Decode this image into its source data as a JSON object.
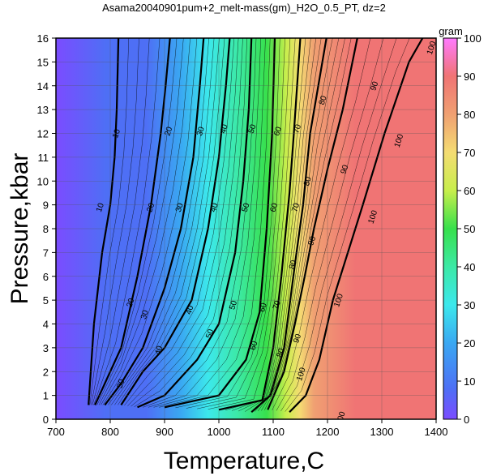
{
  "chart_data": {
    "type": "heatmap",
    "title": "Asama20040901pum+2_melt-mass(gm)_H2O_0.5_PT, dz=2",
    "xlabel": "Temperature,C",
    "ylabel": "Pressure,kbar",
    "xlim": [
      700,
      1400
    ],
    "ylim": [
      0,
      16
    ],
    "x_ticks": [
      700,
      800,
      900,
      1000,
      1100,
      1200,
      1300,
      1400
    ],
    "y_ticks": [
      0,
      1,
      2,
      3,
      4,
      5,
      6,
      7,
      8,
      9,
      10,
      11,
      12,
      13,
      14,
      15,
      16
    ],
    "grid": true,
    "colorbar": {
      "label": "gram",
      "range": [
        0,
        100
      ],
      "ticks": [
        0,
        10,
        20,
        30,
        40,
        50,
        60,
        70,
        80,
        90,
        100
      ],
      "placement": "right"
    },
    "contour_step": 2,
    "major_contour_step": 10,
    "contours": [
      {
        "level": 10,
        "points": [
          [
            760,
            0.6
          ],
          [
            770,
            4
          ],
          [
            785,
            7
          ],
          [
            800,
            9
          ],
          [
            808,
            11
          ],
          [
            812,
            13
          ],
          [
            815,
            16
          ]
        ],
        "labels": [
          [
            780,
            8.9
          ],
          [
            810,
            12.0
          ]
        ]
      },
      {
        "level": 20,
        "points": [
          [
            772,
            0.6
          ],
          [
            820,
            3
          ],
          [
            850,
            6
          ],
          [
            875,
            9
          ],
          [
            893,
            12
          ],
          [
            902,
            14
          ],
          [
            910,
            16
          ]
        ],
        "labels": [
          [
            836,
            4.9
          ],
          [
            873,
            8.9
          ],
          [
            906,
            12.1
          ]
        ]
      },
      {
        "level": 30,
        "points": [
          [
            790,
            0.6
          ],
          [
            820,
            1.5
          ],
          [
            860,
            3
          ],
          [
            900,
            5.5
          ],
          [
            930,
            8
          ],
          [
            953,
            11
          ],
          [
            965,
            14
          ],
          [
            972,
            16
          ]
        ],
        "labels": [
          [
            818,
            1.5
          ],
          [
            862,
            4.4
          ],
          [
            926,
            8.9
          ],
          [
            965,
            12.1
          ]
        ]
      },
      {
        "level": 40,
        "points": [
          [
            820,
            0.6
          ],
          [
            860,
            2
          ],
          [
            900,
            3
          ],
          [
            950,
            5
          ],
          [
            980,
            8
          ],
          [
            1000,
            11
          ],
          [
            1013,
            14
          ],
          [
            1020,
            16
          ]
        ],
        "labels": [
          [
            888,
            2.9
          ],
          [
            945,
            4.6
          ],
          [
            990,
            8.9
          ],
          [
            1008,
            12.2
          ]
        ]
      },
      {
        "level": 50,
        "points": [
          [
            850,
            0.5
          ],
          [
            900,
            1
          ],
          [
            960,
            2.5
          ],
          [
            1000,
            4
          ],
          [
            1030,
            7
          ],
          [
            1045,
            10
          ],
          [
            1055,
            13
          ],
          [
            1060,
            16
          ]
        ],
        "labels": [
          [
            982,
            3.6
          ],
          [
            1025,
            4.8
          ],
          [
            1048,
            8.9
          ],
          [
            1060,
            12.2
          ]
        ]
      },
      {
        "level": 60,
        "points": [
          [
            900,
            0.5
          ],
          [
            1000,
            1
          ],
          [
            1050,
            2.5
          ],
          [
            1075,
            4.5
          ],
          [
            1088,
            8
          ],
          [
            1098,
            12
          ],
          [
            1103,
            16
          ]
        ],
        "labels": [
          [
            1063,
            3.1
          ],
          [
            1080,
            4.7
          ],
          [
            1100,
            8.9
          ],
          [
            1107,
            12.1
          ]
        ]
      },
      {
        "level": 70,
        "points": [
          [
            1000,
            0.4
          ],
          [
            1080,
            0.8
          ],
          [
            1100,
            3
          ],
          [
            1115,
            6
          ],
          [
            1130,
            9.5
          ],
          [
            1138,
            12
          ],
          [
            1150,
            16
          ]
        ],
        "labels": [
          [
            1105,
            4.8
          ],
          [
            1140,
            8.9
          ],
          [
            1143,
            12.2
          ]
        ]
      },
      {
        "level": 80,
        "points": [
          [
            1060,
            0.3
          ],
          [
            1095,
            1
          ],
          [
            1120,
            3
          ],
          [
            1140,
            6.5
          ],
          [
            1155,
            9
          ],
          [
            1168,
            12
          ],
          [
            1198,
            16
          ]
        ],
        "labels": [
          [
            1112,
            2.8
          ],
          [
            1135,
            6.5
          ],
          [
            1162,
            10.0
          ],
          [
            1190,
            13.4
          ]
        ]
      },
      {
        "level": 90,
        "points": [
          [
            1090,
            0.4
          ],
          [
            1120,
            2
          ],
          [
            1140,
            4
          ],
          [
            1158,
            6
          ],
          [
            1175,
            8
          ],
          [
            1200,
            10.5
          ],
          [
            1228,
            13
          ],
          [
            1255,
            16
          ]
        ],
        "labels": [
          [
            1143,
            3.4
          ],
          [
            1170,
            7.5
          ],
          [
            1230,
            10.5
          ],
          [
            1285,
            14.0
          ]
        ]
      },
      {
        "level": 100,
        "points": [
          [
            1130,
            0.3
          ],
          [
            1160,
            1
          ],
          [
            1185,
            2.5
          ],
          [
            1210,
            5
          ],
          [
            1265,
            9
          ],
          [
            1305,
            12
          ],
          [
            1350,
            15
          ],
          [
            1375,
            16
          ]
        ],
        "labels": [
          [
            1150,
            1.9
          ],
          [
            1219,
            5.0
          ],
          [
            1282,
            8.5
          ],
          [
            1330,
            11.7
          ],
          [
            1390,
            15.6
          ],
          [
            1223,
            0.05
          ]
        ]
      }
    ]
  }
}
